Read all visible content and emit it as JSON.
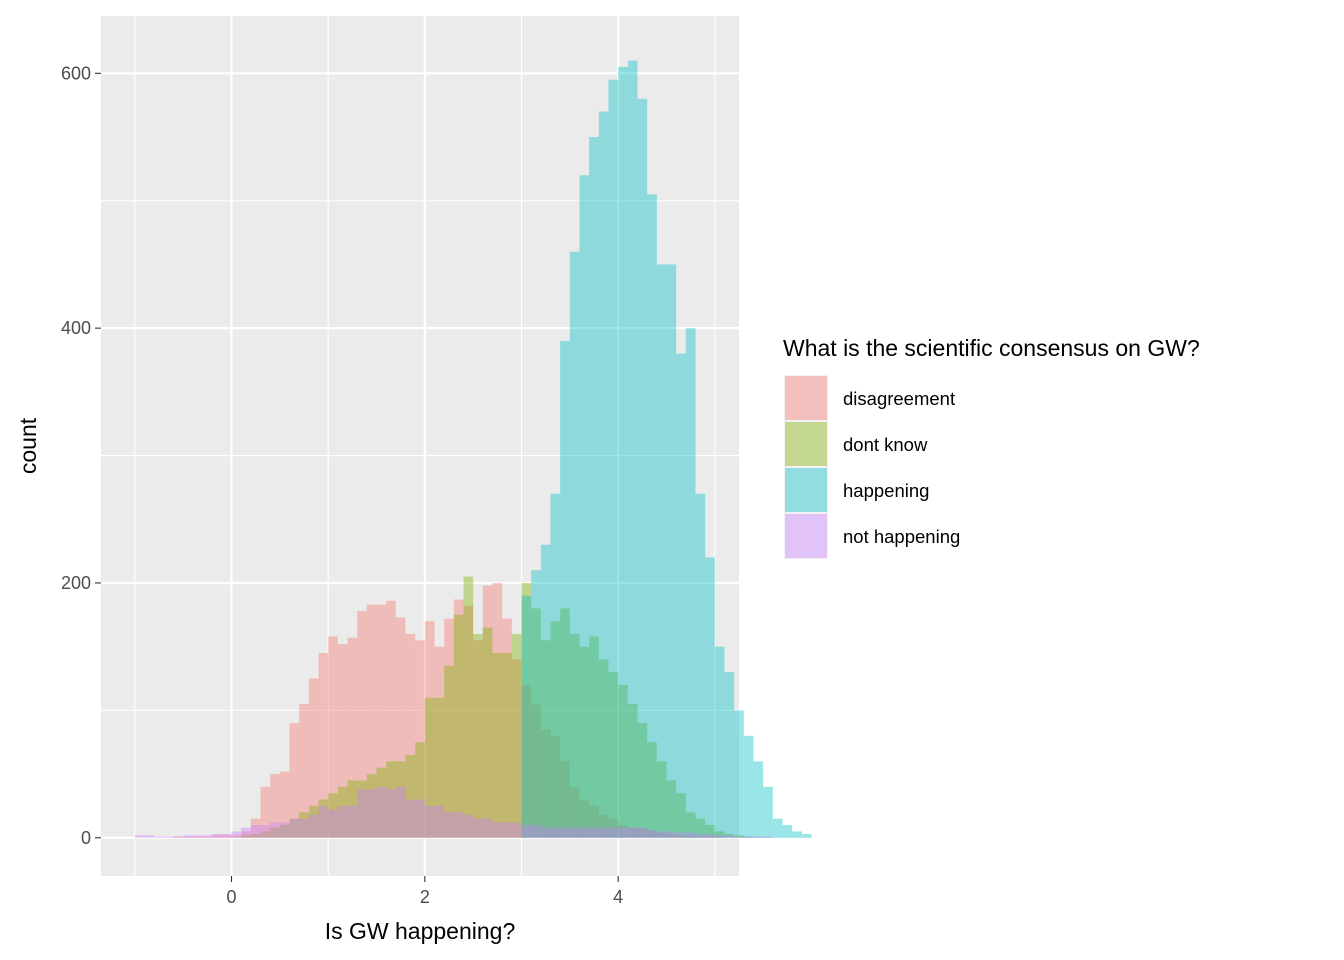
{
  "chart_data": {
    "type": "histogram",
    "xlabel": "Is GW happening?",
    "ylabel": "count",
    "xlim": [
      -1.35,
      5.25
    ],
    "ylim": [
      -30,
      645
    ],
    "x_ticks": [
      0,
      2,
      4
    ],
    "y_ticks": [
      0,
      200,
      400,
      600
    ],
    "bin_width": 0.1,
    "bin_start": -1.0,
    "grid": true,
    "overlay": "identity",
    "alpha": 0.4,
    "legend": {
      "title": "What is the scientific consensus on GW?",
      "position": "right"
    },
    "series": [
      {
        "name": "disagreement",
        "color": "#F8766D",
        "values": [
          0,
          0,
          0,
          0,
          1,
          1,
          1,
          1,
          2,
          2,
          2,
          5,
          15,
          40,
          50,
          52,
          90,
          105,
          125,
          145,
          158,
          152,
          157,
          178,
          183,
          183,
          186,
          173,
          160,
          155,
          170,
          150,
          172,
          187,
          182,
          155,
          198,
          200,
          172,
          140,
          120,
          105,
          85,
          80,
          60,
          40,
          30,
          25,
          18,
          15,
          10,
          8,
          8,
          6,
          4,
          3,
          2,
          1,
          1,
          1,
          1,
          0,
          0,
          0,
          0,
          0,
          0,
          0,
          0,
          0
        ]
      },
      {
        "name": "dont know",
        "color": "#7CAE00",
        "values": [
          0,
          0,
          0,
          0,
          0,
          0,
          0,
          0,
          0,
          0,
          0,
          2,
          3,
          5,
          8,
          10,
          15,
          20,
          25,
          30,
          35,
          40,
          45,
          45,
          50,
          55,
          60,
          60,
          65,
          75,
          110,
          110,
          135,
          175,
          205,
          160,
          165,
          145,
          145,
          160,
          200,
          180,
          155,
          170,
          180,
          160,
          150,
          158,
          140,
          130,
          120,
          105,
          90,
          75,
          60,
          45,
          35,
          20,
          15,
          10,
          5,
          3,
          2,
          1,
          0,
          0,
          0,
          0,
          0,
          0
        ]
      },
      {
        "name": "happening",
        "color": "#00BFC4",
        "values": [
          0,
          0,
          0,
          0,
          0,
          0,
          0,
          0,
          0,
          0,
          0,
          0,
          0,
          0,
          0,
          0,
          0,
          0,
          0,
          0,
          0,
          0,
          0,
          0,
          0,
          0,
          0,
          0,
          0,
          0,
          0,
          0,
          0,
          0,
          0,
          0,
          0,
          0,
          0,
          0,
          190,
          210,
          230,
          270,
          390,
          460,
          520,
          550,
          570,
          595,
          605,
          610,
          580,
          505,
          450,
          450,
          380,
          400,
          270,
          220,
          150,
          130,
          100,
          80,
          60,
          40,
          15,
          10,
          5,
          3
        ]
      },
      {
        "name": "not happening",
        "color": "#C77CFF",
        "values": [
          2,
          2,
          1,
          1,
          1,
          2,
          2,
          2,
          3,
          3,
          5,
          8,
          10,
          10,
          12,
          12,
          15,
          15,
          18,
          25,
          22,
          25,
          25,
          38,
          38,
          40,
          38,
          40,
          30,
          30,
          25,
          25,
          20,
          20,
          18,
          15,
          15,
          12,
          12,
          12,
          10,
          10,
          8,
          8,
          8,
          8,
          8,
          8,
          8,
          8,
          8,
          8,
          8,
          6,
          5,
          5,
          4,
          4,
          3,
          3,
          2,
          2,
          1,
          1,
          1,
          1,
          0,
          0,
          0,
          0
        ]
      }
    ]
  }
}
